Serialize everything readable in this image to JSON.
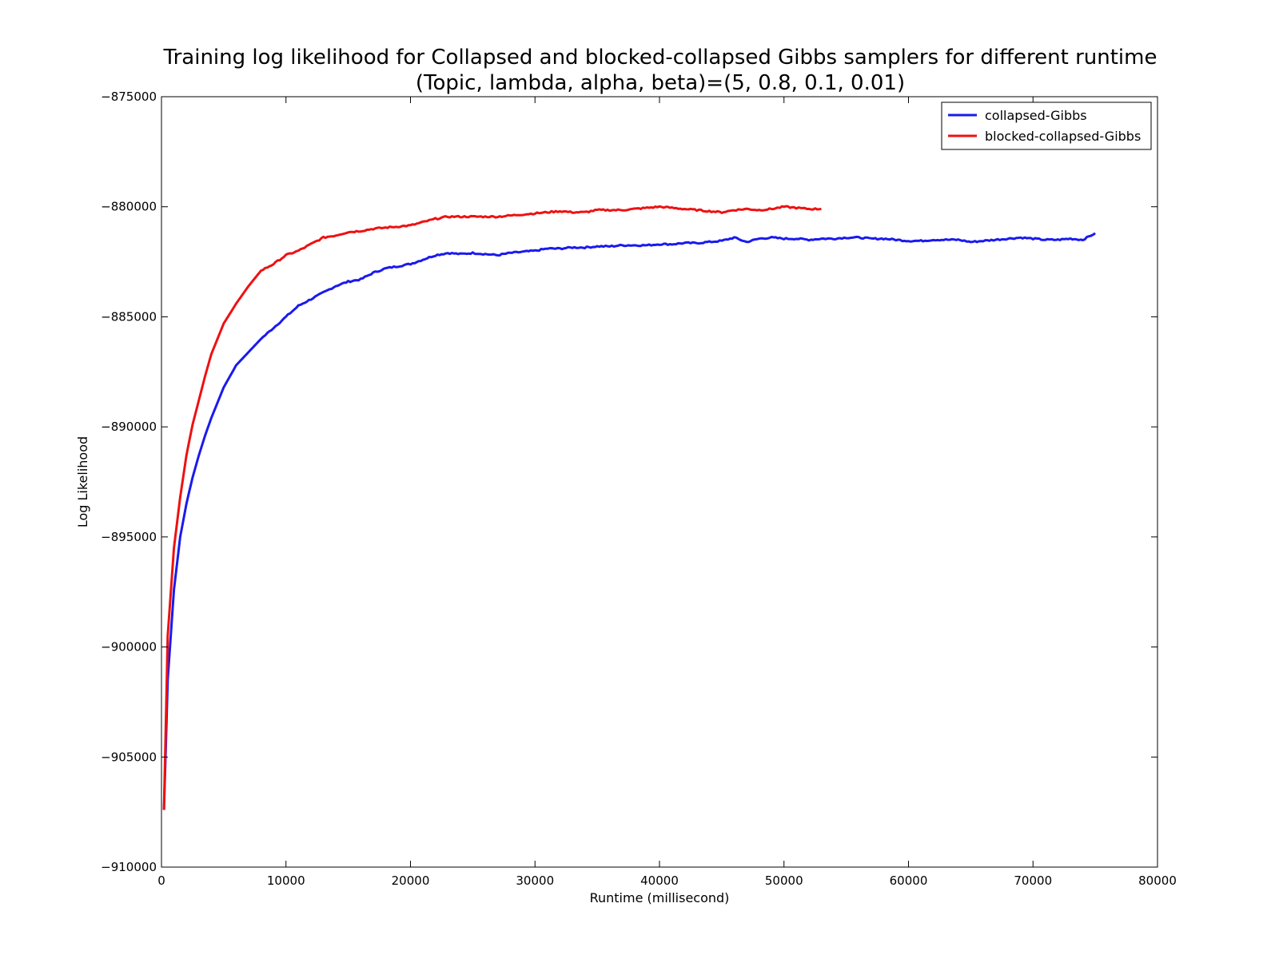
{
  "chart_data": {
    "type": "line",
    "title": "Training log likelihood for Collapsed and blocked-collapsed Gibbs samplers for different runtime",
    "subtitle": "(Topic, lambda, alpha, beta)=(5, 0.8, 0.1, 0.01)",
    "xlabel": "Runtime (millisecond)",
    "ylabel": "Log Likelihood",
    "xlim": [
      0,
      80000
    ],
    "ylim": [
      -910000,
      -875000
    ],
    "x_ticks": [
      0,
      10000,
      20000,
      30000,
      40000,
      50000,
      60000,
      70000,
      80000
    ],
    "y_ticks": [
      -875000,
      -880000,
      -885000,
      -890000,
      -895000,
      -900000,
      -905000,
      -910000
    ],
    "x_tick_labels": [
      "0",
      "10000",
      "20000",
      "30000",
      "40000",
      "50000",
      "60000",
      "70000",
      "80000"
    ],
    "y_tick_labels": [
      "−875000",
      "−880000",
      "−885000",
      "−890000",
      "−895000",
      "−900000",
      "−905000",
      "−910000"
    ],
    "grid": false,
    "legend_position": "top-right",
    "series": [
      {
        "name": "collapsed-Gibbs",
        "color": "#1a1aee",
        "x": [
          200,
          500,
          1000,
          1500,
          2000,
          2500,
          3000,
          3500,
          4000,
          5000,
          6000,
          7000,
          8000,
          9000,
          10000,
          11000,
          12000,
          13000,
          14000,
          15000,
          16000,
          17000,
          18000,
          19000,
          20000,
          21000,
          22000,
          23000,
          24000,
          25000,
          26000,
          27000,
          28000,
          29000,
          30000,
          31000,
          32000,
          33000,
          34000,
          35000,
          36000,
          37000,
          38000,
          39000,
          40000,
          41000,
          42000,
          43000,
          44000,
          45000,
          46000,
          47000,
          48000,
          49000,
          50000,
          51000,
          52000,
          53000,
          54000,
          55000,
          56000,
          57000,
          58000,
          59000,
          60000,
          61000,
          62000,
          63000,
          64000,
          65000,
          66000,
          67000,
          68000,
          69000,
          70000,
          71000,
          72000,
          73000,
          74000,
          75000
        ],
        "y": [
          -907400,
          -901500,
          -897400,
          -895000,
          -893500,
          -892300,
          -891300,
          -890400,
          -889600,
          -888200,
          -887200,
          -886600,
          -886000,
          -885500,
          -885000,
          -884500,
          -884200,
          -883900,
          -883600,
          -883400,
          -883300,
          -883000,
          -882800,
          -882700,
          -882600,
          -882400,
          -882200,
          -882100,
          -882150,
          -882100,
          -882150,
          -882200,
          -882100,
          -882050,
          -882000,
          -881900,
          -881900,
          -881850,
          -881850,
          -881800,
          -881800,
          -881750,
          -881750,
          -881750,
          -881700,
          -881700,
          -881650,
          -881650,
          -881600,
          -881550,
          -881400,
          -881600,
          -881450,
          -881400,
          -881450,
          -881450,
          -881500,
          -881450,
          -881450,
          -881400,
          -881400,
          -881450,
          -881450,
          -881500,
          -881550,
          -881550,
          -881500,
          -881500,
          -881500,
          -881600,
          -881550,
          -881500,
          -881450,
          -881400,
          -881450,
          -881500,
          -881500,
          -881450,
          -881500,
          -881200
        ]
      },
      {
        "name": "blocked-collapsed-Gibbs",
        "color": "#ee1111",
        "x": [
          200,
          500,
          1000,
          1500,
          2000,
          2500,
          3000,
          3500,
          4000,
          5000,
          6000,
          7000,
          8000,
          9000,
          10000,
          11000,
          12000,
          13000,
          14000,
          15000,
          16000,
          17000,
          18000,
          19000,
          20000,
          21000,
          22000,
          23000,
          24000,
          25000,
          26000,
          27000,
          28000,
          29000,
          30000,
          31000,
          32000,
          33000,
          34000,
          35000,
          36000,
          37000,
          38000,
          39000,
          40000,
          41000,
          42000,
          43000,
          44000,
          45000,
          46000,
          47000,
          48000,
          49000,
          50000,
          51000,
          52000,
          53000
        ],
        "y": [
          -907400,
          -899500,
          -895500,
          -893200,
          -891300,
          -889900,
          -888800,
          -887700,
          -886700,
          -885300,
          -884400,
          -883600,
          -882900,
          -882600,
          -882200,
          -882000,
          -881700,
          -881400,
          -881300,
          -881150,
          -881100,
          -881000,
          -880950,
          -880900,
          -880850,
          -880700,
          -880550,
          -880450,
          -880450,
          -880450,
          -880450,
          -880450,
          -880400,
          -880350,
          -880300,
          -880250,
          -880200,
          -880250,
          -880250,
          -880150,
          -880150,
          -880150,
          -880100,
          -880050,
          -880000,
          -880050,
          -880100,
          -880150,
          -880200,
          -880250,
          -880150,
          -880100,
          -880150,
          -880100,
          -880000,
          -880050,
          -880100,
          -880100
        ]
      }
    ]
  }
}
